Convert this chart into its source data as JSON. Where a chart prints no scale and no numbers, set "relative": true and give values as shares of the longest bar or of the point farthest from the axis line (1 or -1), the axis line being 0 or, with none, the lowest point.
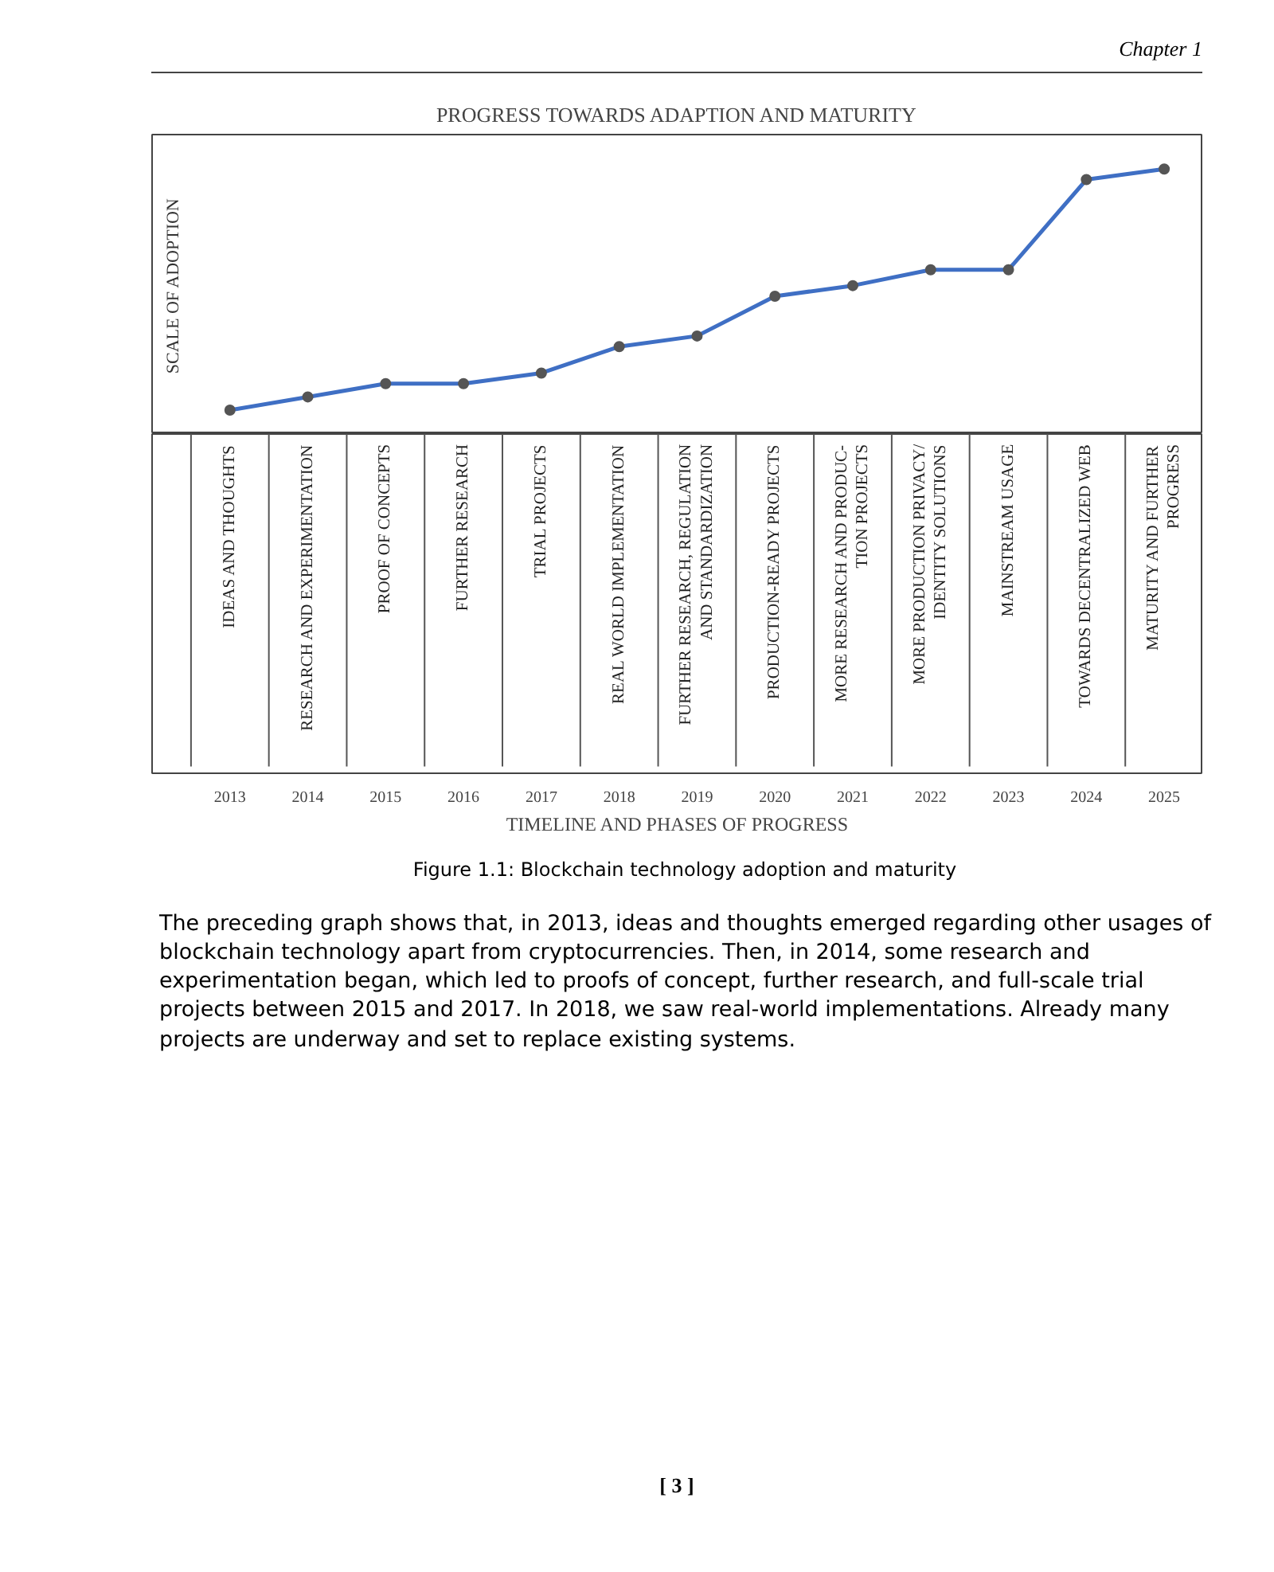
{
  "chart_data": {
    "type": "line",
    "title": "PROGRESS TOWARDS ADAPTION AND MATURITY",
    "ylabel": "SCALE OF ADOPTION",
    "xlabel": "TIMELINE AND PHASES OF PROGRESS",
    "relative": true,
    "marker": "circle",
    "line_style": "solid",
    "grid": false,
    "categories": [
      "2013",
      "2014",
      "2015",
      "2016",
      "2017",
      "2018",
      "2019",
      "2020",
      "2021",
      "2022",
      "2023",
      "2024",
      "2025"
    ],
    "series": [
      {
        "color": "#3f6fc4",
        "values": [
          0.09,
          0.14,
          0.19,
          0.19,
          0.23,
          0.33,
          0.37,
          0.52,
          0.56,
          0.62,
          0.62,
          0.96,
          1.0
        ]
      }
    ],
    "annotations": [
      "Chapter 1",
      "Figure 1.1: Blockchain technology adoption and maturity",
      "The preceding graph shows that, in 2013, ideas and thoughts emerged regarding other usages of blockchain technology apart from cryptocurrencies. Then, in 2014, some research and experimentation began, which led to proofs of concept, further research, and full-scale trial projects between 2015 and 2017. In 2018, we saw real-world implementations. Already many projects are underway and set to replace existing systems.",
      "[ 3 ]",
      "IDEAS AND THOUGHTS",
      "RESEARCH AND EXPERIMENTATION",
      "PROOF OF CONCEPTS",
      "FURTHER RESEARCH",
      "TRIAL PROJECTS",
      "REAL WORLD IMPLEMENTATION",
      "FURTHER RESEARCH, REGULATION\nAND STANDARDIZATION",
      "PRODUCTION-READY PROJECTS",
      "MORE RESEARCH AND PRODUC-\nTION PROJECTS",
      "MORE PRODUCTION PRIVACY/\nIDENTITY SOLUTIONS",
      "MAINSTREAM USAGE",
      "TOWARDS DECENTRALIZED WEB",
      "MATURITY AND FURTHER\nPROGRESS"
    ]
  }
}
